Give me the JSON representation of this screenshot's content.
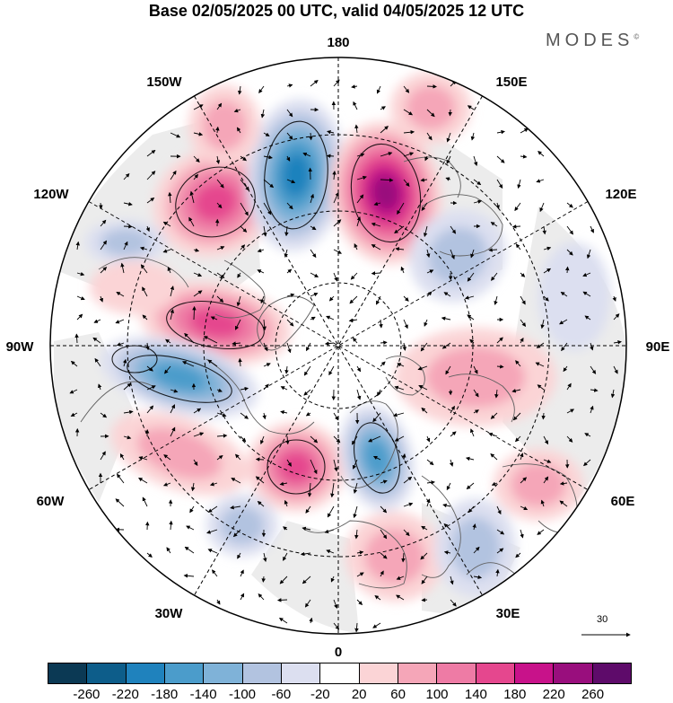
{
  "title": "Base 02/05/2025 00 UTC, valid 04/05/2025 12 UTC",
  "brand": "MODES",
  "brand_mark": "©",
  "map": {
    "projection": "north-polar-stereographic",
    "longitude_labels": {
      "top": "180",
      "bottom": "0",
      "left": "90W",
      "right": "90E",
      "upper_left_1": "150W",
      "upper_left_2": "120W",
      "upper_right_1": "150E",
      "upper_right_2": "120E",
      "lower_left_1": "60W",
      "lower_left_2": "30W",
      "lower_right_1": "60E",
      "lower_right_2": "30E"
    },
    "reference_vector": "30",
    "colors": {
      "neg": [
        "#0b3954",
        "#0d5d8a",
        "#1f82bd",
        "#4b9ccb",
        "#7fb2d8",
        "#b2c3e0",
        "#dcdff0"
      ],
      "neutral": "#ffffff",
      "pos": [
        "#fbd4d6",
        "#f5a6b8",
        "#ee7ba5",
        "#e5478e",
        "#c8128a",
        "#990e7d",
        "#5e0b6a"
      ],
      "background_shade": "#ececec",
      "coast": "#606060"
    }
  },
  "colorbar": {
    "ticks": [
      "-260",
      "-220",
      "-180",
      "-140",
      "-100",
      "-60",
      "-20",
      "20",
      "60",
      "100",
      "140",
      "180",
      "220",
      "260"
    ],
    "colors": [
      "#0b3954",
      "#0d5d8a",
      "#1f82bd",
      "#4b9ccb",
      "#7fb2d8",
      "#b2c3e0",
      "#dcdff0",
      "#ffffff",
      "#fbd4d6",
      "#f5a6b8",
      "#ee7ba5",
      "#e5478e",
      "#c8128a",
      "#990e7d",
      "#5e0b6a"
    ]
  }
}
